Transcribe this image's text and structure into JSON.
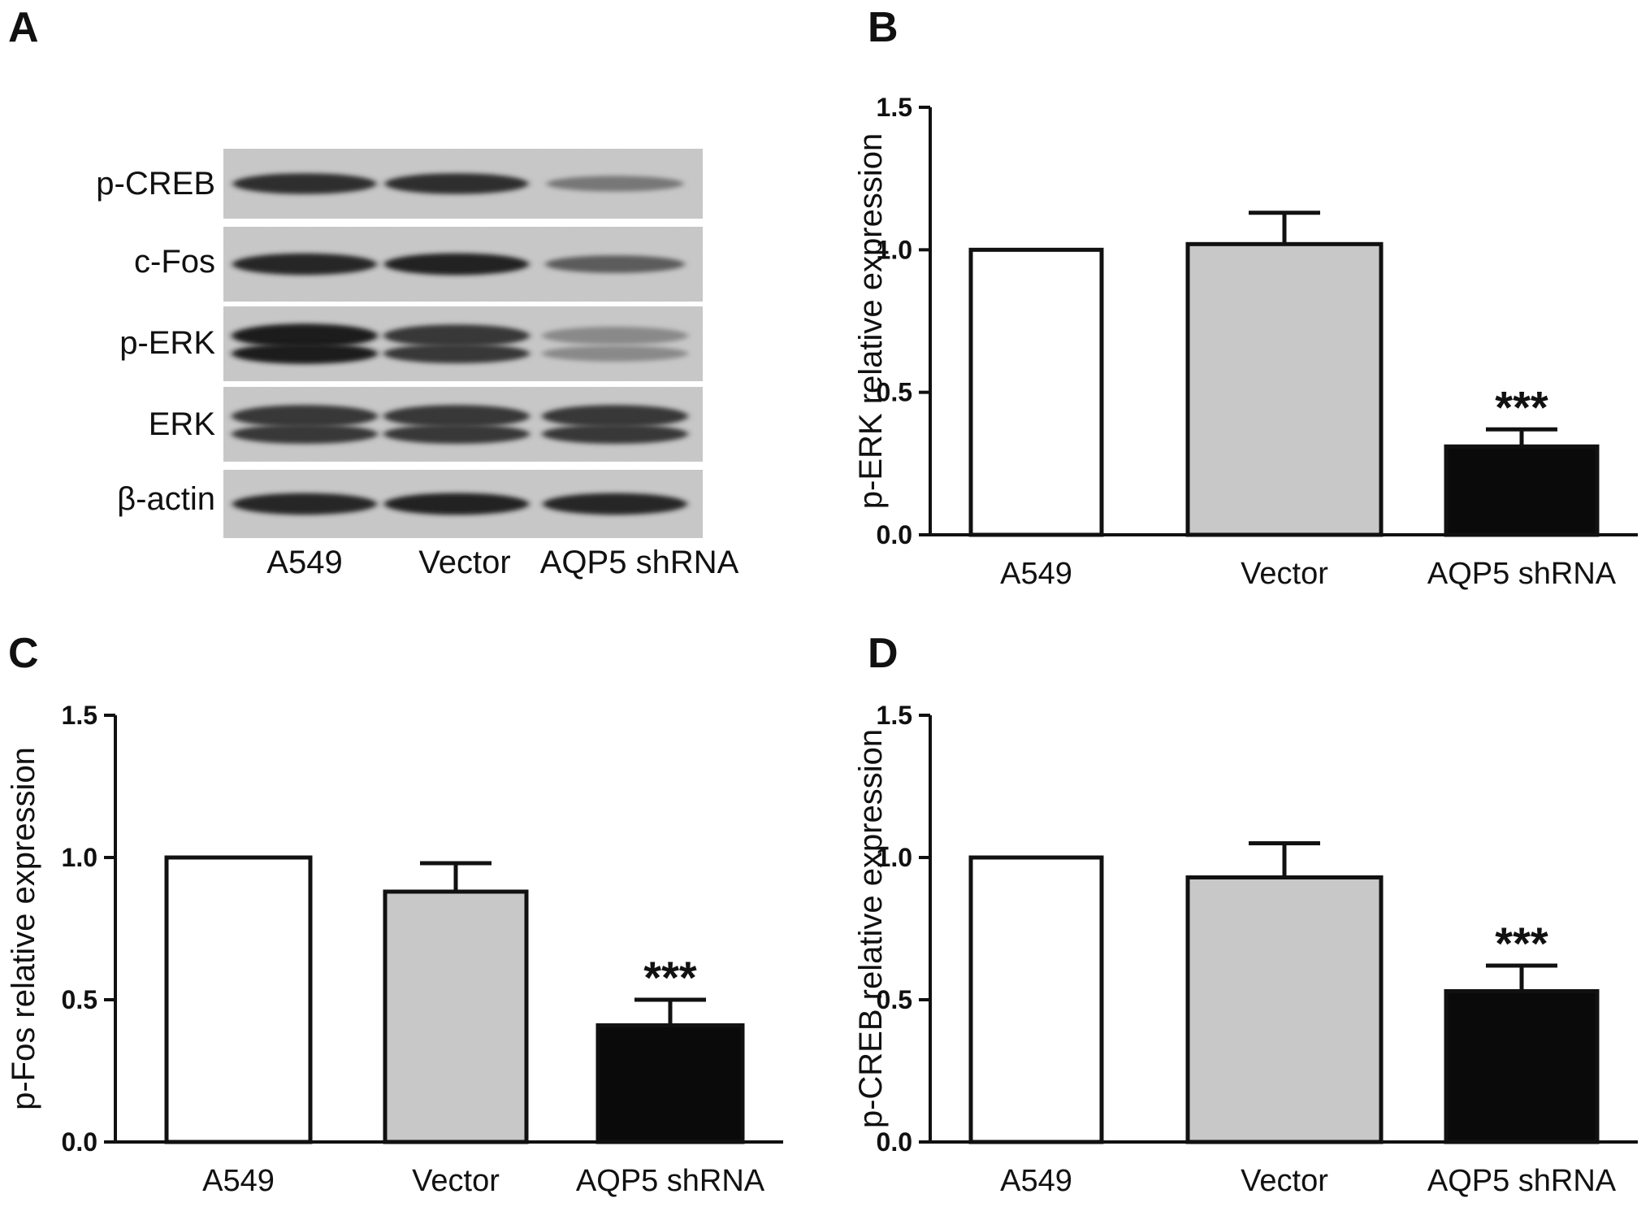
{
  "panels": [
    {
      "letter": "A"
    },
    {
      "letter": "B"
    },
    {
      "letter": "C"
    },
    {
      "letter": "D"
    }
  ],
  "blot": {
    "bands": [
      "p-CREB",
      "c-Fos",
      "p-ERK",
      "ERK",
      "β-actin"
    ],
    "lanes": [
      "A549",
      "Vector",
      "AQP5 shRNA"
    ],
    "intensity": [
      [
        0.85,
        0.85,
        0.45
      ],
      [
        0.9,
        0.92,
        0.6
      ],
      [
        0.95,
        0.8,
        0.35
      ],
      [
        0.8,
        0.8,
        0.8
      ],
      [
        0.9,
        0.92,
        0.9
      ]
    ]
  },
  "colors": {
    "bar_fills": [
      "#ffffff",
      "#c8c8c8",
      "#0a0a0a"
    ],
    "axis": "#111111"
  },
  "chart_data": [
    {
      "panel": "B",
      "type": "bar",
      "categories": [
        "A549",
        "Vector",
        "AQP5 shRNA"
      ],
      "values": [
        1.0,
        1.02,
        0.31
      ],
      "errors": [
        0,
        0.11,
        0.06
      ],
      "significance": [
        "",
        "",
        "***"
      ],
      "ylabel": "p-ERK relative expression",
      "xlabel": "",
      "ylim": [
        0,
        1.5
      ],
      "yticks": [
        "0.0",
        "0.5",
        "1.0",
        "1.5"
      ],
      "grid": false
    },
    {
      "panel": "C",
      "type": "bar",
      "categories": [
        "A549",
        "Vector",
        "AQP5 shRNA"
      ],
      "values": [
        1.0,
        0.88,
        0.41
      ],
      "errors": [
        0,
        0.1,
        0.09
      ],
      "significance": [
        "",
        "",
        "***"
      ],
      "ylabel": "p-Fos relative expression",
      "xlabel": "",
      "ylim": [
        0,
        1.5
      ],
      "yticks": [
        "0.0",
        "0.5",
        "1.0",
        "1.5"
      ],
      "grid": false
    },
    {
      "panel": "D",
      "type": "bar",
      "categories": [
        "A549",
        "Vector",
        "AQP5 shRNA"
      ],
      "values": [
        1.0,
        0.93,
        0.53
      ],
      "errors": [
        0,
        0.12,
        0.09
      ],
      "significance": [
        "",
        "",
        "***"
      ],
      "ylabel": "p-CREB relative expression",
      "xlabel": "",
      "ylim": [
        0,
        1.5
      ],
      "yticks": [
        "0.0",
        "0.5",
        "1.0",
        "1.5"
      ],
      "grid": false
    }
  ]
}
